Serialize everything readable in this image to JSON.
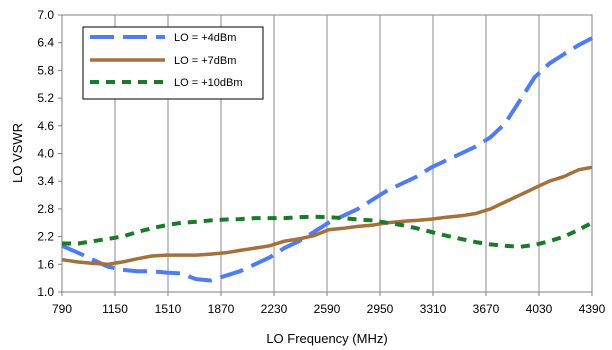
{
  "chart_data": {
    "type": "line",
    "xlabel": "LO Frequency (MHz)",
    "ylabel": "LO VSWR",
    "xlim": [
      790,
      4390
    ],
    "ylim": [
      1.0,
      7.0
    ],
    "xticks": [
      "790",
      "1150",
      "1510",
      "1870",
      "2230",
      "2590",
      "2950",
      "3310",
      "3670",
      "4030",
      "4390"
    ],
    "yticks": [
      "1.0",
      "1.6",
      "2.2",
      "2.8",
      "3.4",
      "4.0",
      "4.6",
      "5.2",
      "5.8",
      "6.4",
      "7.0"
    ],
    "grid": "vertical",
    "legend": "top-left",
    "series": [
      {
        "name": "LO = +4dBm",
        "color": "#4f7bf5",
        "style": "long-dash",
        "x": [
          790,
          900,
          1000,
          1100,
          1200,
          1300,
          1400,
          1500,
          1600,
          1700,
          1800,
          1900,
          2000,
          2100,
          2200,
          2300,
          2400,
          2500,
          2600,
          2700,
          2800,
          2900,
          3000,
          3100,
          3200,
          3300,
          3400,
          3500,
          3600,
          3700,
          3800,
          3900,
          4000,
          4100,
          4200,
          4300,
          4390
        ],
        "y": [
          2.0,
          1.85,
          1.7,
          1.55,
          1.48,
          1.45,
          1.45,
          1.42,
          1.4,
          1.28,
          1.25,
          1.35,
          1.45,
          1.6,
          1.75,
          1.95,
          2.1,
          2.3,
          2.5,
          2.65,
          2.8,
          3.0,
          3.2,
          3.35,
          3.5,
          3.7,
          3.85,
          4.0,
          4.15,
          4.35,
          4.65,
          5.15,
          5.65,
          5.95,
          6.15,
          6.35,
          6.5
        ]
      },
      {
        "name": "LO = +7dBm",
        "color": "#a5703c",
        "style": "solid",
        "x": [
          790,
          900,
          1000,
          1100,
          1200,
          1300,
          1400,
          1500,
          1600,
          1700,
          1800,
          1900,
          2000,
          2100,
          2200,
          2300,
          2400,
          2500,
          2600,
          2700,
          2800,
          2900,
          3000,
          3100,
          3200,
          3300,
          3400,
          3500,
          3600,
          3700,
          3800,
          3900,
          4000,
          4100,
          4200,
          4300,
          4390
        ],
        "y": [
          1.7,
          1.65,
          1.62,
          1.6,
          1.65,
          1.72,
          1.78,
          1.8,
          1.8,
          1.8,
          1.82,
          1.85,
          1.9,
          1.95,
          2.0,
          2.1,
          2.15,
          2.22,
          2.35,
          2.38,
          2.42,
          2.45,
          2.5,
          2.53,
          2.55,
          2.58,
          2.62,
          2.65,
          2.7,
          2.8,
          2.95,
          3.1,
          3.25,
          3.4,
          3.5,
          3.65,
          3.7
        ]
      },
      {
        "name": "LO = +10dBm",
        "color": "#1a7a2a",
        "style": "short-dash",
        "x": [
          790,
          900,
          1000,
          1100,
          1200,
          1300,
          1400,
          1500,
          1600,
          1700,
          1800,
          1900,
          2000,
          2100,
          2200,
          2300,
          2400,
          2500,
          2600,
          2700,
          2800,
          2900,
          3000,
          3100,
          3200,
          3300,
          3400,
          3500,
          3600,
          3700,
          3800,
          3900,
          4000,
          4100,
          4200,
          4300,
          4390
        ],
        "y": [
          2.05,
          2.05,
          2.1,
          2.15,
          2.2,
          2.3,
          2.38,
          2.45,
          2.5,
          2.52,
          2.55,
          2.57,
          2.58,
          2.6,
          2.6,
          2.6,
          2.62,
          2.63,
          2.62,
          2.6,
          2.57,
          2.55,
          2.5,
          2.45,
          2.38,
          2.3,
          2.22,
          2.15,
          2.08,
          2.03,
          2.0,
          1.98,
          2.02,
          2.1,
          2.2,
          2.35,
          2.5
        ]
      }
    ]
  }
}
